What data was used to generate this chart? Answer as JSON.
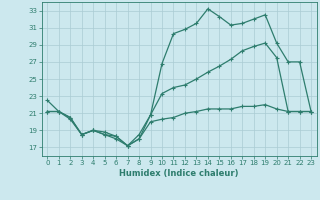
{
  "xlabel": "Humidex (Indice chaleur)",
  "xlim": [
    -0.5,
    23.5
  ],
  "ylim": [
    16,
    34
  ],
  "yticks": [
    17,
    19,
    21,
    23,
    25,
    27,
    29,
    31,
    33
  ],
  "xticks": [
    0,
    1,
    2,
    3,
    4,
    5,
    6,
    7,
    8,
    9,
    10,
    11,
    12,
    13,
    14,
    15,
    16,
    17,
    18,
    19,
    20,
    21,
    22,
    23
  ],
  "bg_color": "#cce8ee",
  "line_color": "#2e7d6e",
  "grid_color": "#aaccd4",
  "line1_x": [
    0,
    1,
    2,
    3,
    4,
    5,
    6,
    7,
    8,
    9,
    10,
    11,
    12,
    13,
    14,
    15,
    16,
    17,
    18,
    19,
    20,
    21,
    22,
    23
  ],
  "line1_y": [
    22.5,
    21.2,
    20.5,
    18.5,
    19.0,
    18.8,
    18.3,
    17.2,
    18.5,
    20.8,
    26.8,
    30.3,
    30.8,
    31.5,
    33.2,
    32.3,
    31.3,
    31.5,
    32.0,
    32.5,
    29.2,
    27.0,
    27.0,
    21.2
  ],
  "line2_x": [
    0,
    1,
    2,
    3,
    4,
    5,
    6,
    7,
    8,
    9,
    10,
    11,
    12,
    13,
    14,
    15,
    16,
    17,
    18,
    19,
    20,
    21,
    22,
    23
  ],
  "line2_y": [
    21.2,
    21.2,
    20.5,
    18.5,
    19.0,
    18.5,
    18.3,
    17.2,
    18.0,
    20.8,
    23.3,
    24.0,
    24.3,
    25.0,
    25.8,
    26.5,
    27.3,
    28.3,
    28.8,
    29.2,
    27.5,
    21.2,
    21.2,
    21.2
  ],
  "line3_x": [
    0,
    1,
    2,
    3,
    4,
    5,
    6,
    7,
    8,
    9,
    10,
    11,
    12,
    13,
    14,
    15,
    16,
    17,
    18,
    19,
    20,
    21,
    22,
    23
  ],
  "line3_y": [
    21.2,
    21.2,
    20.3,
    18.5,
    19.0,
    18.5,
    18.0,
    17.2,
    18.0,
    20.0,
    20.3,
    20.5,
    21.0,
    21.2,
    21.5,
    21.5,
    21.5,
    21.8,
    21.8,
    22.0,
    21.5,
    21.2,
    21.2,
    21.2
  ]
}
